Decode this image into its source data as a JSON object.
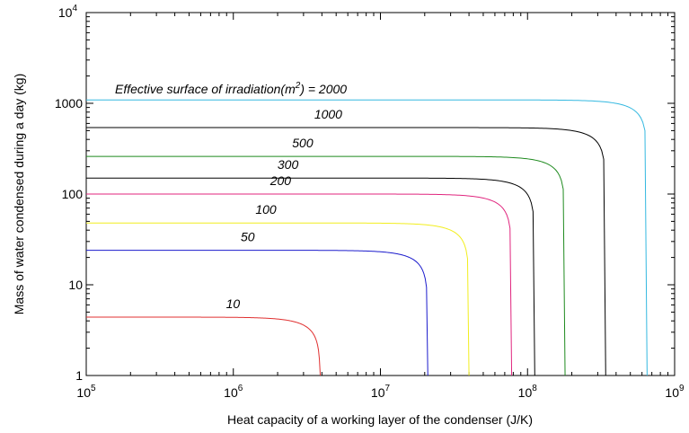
{
  "chart_data": {
    "type": "line",
    "title": "",
    "xlabel": "Heat capacity of a working layer of the condenser (J/K)",
    "ylabel": "Mass of water condensed during a day (kg)",
    "x_scale": "log",
    "y_scale": "log",
    "xlim": [
      100000,
      1000000000
    ],
    "ylim": [
      1,
      10000
    ],
    "grid": false,
    "legend": "none",
    "x_ticks": [
      {
        "base": "10",
        "exp": "5",
        "value": 100000
      },
      {
        "base": "10",
        "exp": "6",
        "value": 1000000
      },
      {
        "base": "10",
        "exp": "7",
        "value": 10000000
      },
      {
        "base": "10",
        "exp": "8",
        "value": 100000000
      },
      {
        "base": "10",
        "exp": "9",
        "value": 1000000000
      }
    ],
    "y_ticks": [
      {
        "label": "1",
        "value": 1
      },
      {
        "label": "10",
        "value": 10
      },
      {
        "label": "100",
        "value": 100
      },
      {
        "label": "1000",
        "value": 1000
      }
    ],
    "y_top_tick": {
      "base": "10",
      "exp": "4",
      "value": 10000
    },
    "annotation_prefix": "Effective surface of irradiation(m",
    "annotation_exp": "2",
    "annotation_suffix": ") = 2000",
    "series": [
      {
        "label": "10",
        "color": "#e03030",
        "plateau": 4.4,
        "x_end": 3900000
      },
      {
        "label": "50",
        "color": "#1a1acc",
        "plateau": 24,
        "x_end": 21000000
      },
      {
        "label": "100",
        "color": "#f2ee1e",
        "plateau": 48,
        "x_end": 40000000
      },
      {
        "label": "200",
        "color": "#e0257e",
        "plateau": 100,
        "x_end": 78000000
      },
      {
        "label": "300",
        "color": "#000000",
        "plateau": 150,
        "x_end": 112000000
      },
      {
        "label": "500",
        "color": "#1e8a1e",
        "plateau": 260,
        "x_end": 180000000
      },
      {
        "label": "1000",
        "color": "#000000",
        "plateau": 540,
        "x_end": 340000000
      },
      {
        "label": "2000",
        "color": "#33b8e0",
        "plateau": 1090,
        "x_end": 650000000
      }
    ]
  }
}
